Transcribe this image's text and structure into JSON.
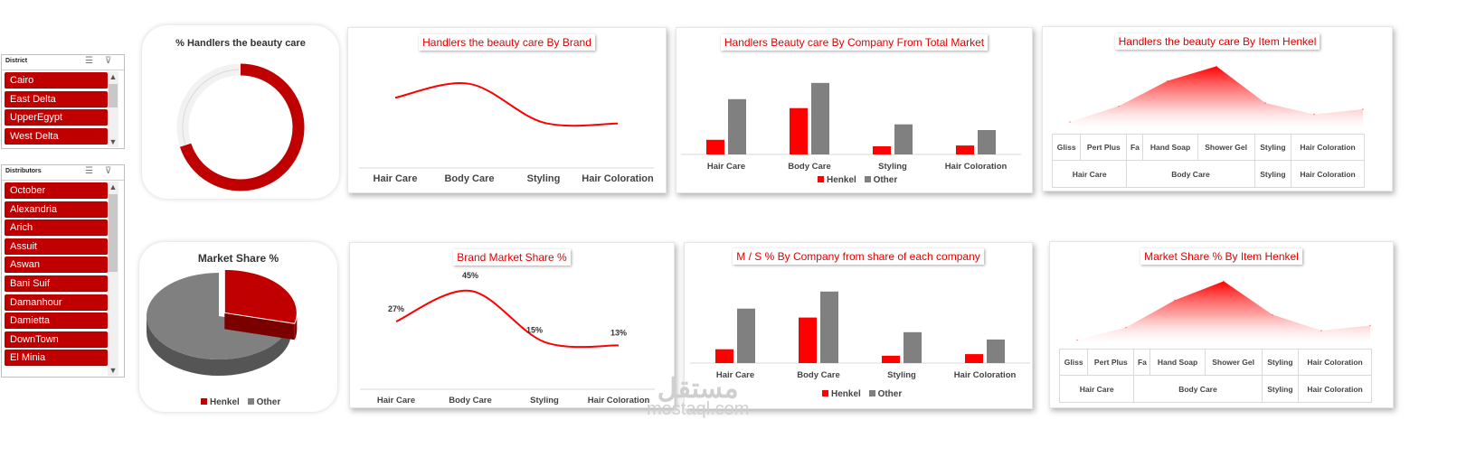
{
  "slicers": [
    {
      "title": "District",
      "items": [
        "Cairo",
        "East Delta",
        "UpperEgypt",
        "West Delta"
      ]
    },
    {
      "title": "Distributors",
      "items": [
        "October",
        "Alexandria",
        "Arich",
        "Assuit",
        "Aswan",
        "Bani Suif",
        "Damanhour",
        "Damietta",
        "DownTown",
        "El Minia"
      ]
    }
  ],
  "colors": {
    "henkel": "#c00000",
    "henkel_bright": "#ff0000",
    "other": "#808080",
    "title_red": "#e00000"
  },
  "watermark": {
    "arabic": "مستقل",
    "latin": "mostaql.com"
  },
  "chart_data": [
    {
      "id": "donut",
      "type": "pie",
      "title": "% Handlers the beauty care",
      "slices": [
        {
          "name": "Henkel",
          "value": 70
        },
        {
          "name": "Other",
          "value": 30
        }
      ],
      "style": "doughnut"
    },
    {
      "id": "brand-line-top",
      "type": "line",
      "title": "Handlers the beauty care By Brand",
      "categories": [
        "Hair Care",
        "Body Care",
        "Styling",
        "Hair Coloration"
      ],
      "values": [
        48,
        62,
        23,
        22
      ]
    },
    {
      "id": "company-bars-top",
      "type": "bar",
      "title": "Handlers Beauty care By Company From Total Market",
      "categories": [
        "Hair Care",
        "Body Care",
        "Styling",
        "Hair Coloration"
      ],
      "series": [
        {
          "name": "Henkel",
          "values": [
            18,
            57,
            10,
            11
          ]
        },
        {
          "name": "Other",
          "values": [
            68,
            88,
            37,
            30
          ]
        }
      ],
      "ylim": [
        0,
        100
      ]
    },
    {
      "id": "item-area-top",
      "type": "area",
      "title": "Handlers the beauty care By Item Henkel",
      "categories": [
        "Gliss",
        "Pert Plus",
        "Fa",
        "Hand Soap",
        "Shower Gel",
        "Styling",
        "Hair Coloration"
      ],
      "values": [
        10,
        35,
        75,
        98,
        40,
        22,
        30
      ],
      "groups": [
        "Hair Care",
        "Body Care",
        "Styling",
        "Hair Coloration"
      ]
    },
    {
      "id": "pie",
      "type": "pie",
      "title": "Market Share %",
      "slices": [
        {
          "name": "Henkel",
          "value": 29
        },
        {
          "name": "Other",
          "value": 71
        }
      ],
      "legend": [
        "Henkel",
        "Other"
      ]
    },
    {
      "id": "brand-line-bottom",
      "type": "line",
      "title": "Brand Market Share %",
      "categories": [
        "Hair Care",
        "Body Care",
        "Styling",
        "Hair Coloration"
      ],
      "values": [
        27,
        45,
        15,
        13
      ],
      "labels": [
        "27%",
        "45%",
        "15%",
        "13%"
      ]
    },
    {
      "id": "company-bars-bottom",
      "type": "bar",
      "title": "M / S % By Company from share of each company",
      "categories": [
        "Hair Care",
        "Body Care",
        "Styling",
        "Hair Coloration"
      ],
      "series": [
        {
          "name": "Henkel",
          "values": [
            17,
            56,
            9,
            11
          ]
        },
        {
          "name": "Other",
          "values": [
            67,
            88,
            38,
            29
          ]
        }
      ],
      "ylim": [
        0,
        100
      ]
    },
    {
      "id": "item-area-bottom",
      "type": "area",
      "title": "Market Share % By Item Henkel",
      "categories": [
        "Gliss",
        "Pert Plus",
        "Fa",
        "Hand Soap",
        "Shower Gel",
        "Styling",
        "Hair Coloration"
      ],
      "values": [
        5,
        25,
        68,
        98,
        45,
        20,
        28
      ],
      "groups": [
        "Hair Care",
        "Body Care",
        "Styling",
        "Hair Coloration"
      ]
    }
  ]
}
